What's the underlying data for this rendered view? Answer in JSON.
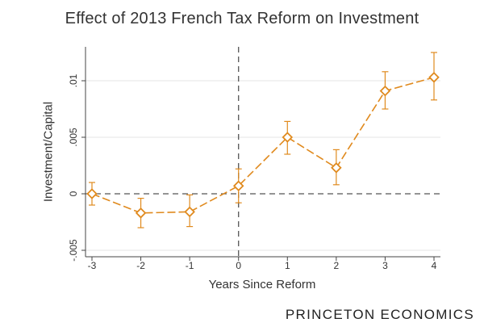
{
  "title": "Effect of 2013 French Tax Reform on Investment",
  "brand": "PRINCETON ECONOMICS",
  "colors": {
    "series": "#e08a1e",
    "axis": "#444444",
    "reference": "#555555",
    "grid": "#e6e6e6"
  },
  "chart_data": {
    "type": "line",
    "title": "Effect of 2013 French Tax Reform on Investment",
    "xlabel": "Years Since Reform",
    "ylabel": "Investment/Capital",
    "xlim": [
      -3,
      4
    ],
    "ylim": [
      -0.005,
      0.0127
    ],
    "x_ticks": [
      -3,
      -2,
      -1,
      0,
      1,
      2,
      3,
      4
    ],
    "x_tick_labels": [
      "-3",
      "-2",
      "-1",
      "0",
      "1",
      "2",
      "3",
      "4"
    ],
    "y_ticks": [
      -0.005,
      0,
      0.005,
      0.01
    ],
    "y_tick_labels": [
      "-.005",
      "0",
      ".005",
      ".01"
    ],
    "grid": "horizontal",
    "reference_lines": {
      "horizontal": 0,
      "vertical": 0,
      "style": "dashed"
    },
    "series": [
      {
        "marker": "diamond-hollow",
        "line_style": "long-dash",
        "x": [
          -3,
          -2,
          -1,
          0,
          1,
          2,
          3,
          4
        ],
        "y": [
          0.0,
          -0.0017,
          -0.0016,
          0.0007,
          0.005,
          0.0023,
          0.0091,
          0.0103
        ],
        "ci_lower": [
          -0.001,
          -0.003,
          -0.0029,
          -0.0008,
          0.0035,
          0.0008,
          0.0075,
          0.0083
        ],
        "ci_upper": [
          0.001,
          -0.0004,
          -0.0001,
          0.0022,
          0.0064,
          0.0039,
          0.0108,
          0.0125
        ]
      }
    ]
  }
}
